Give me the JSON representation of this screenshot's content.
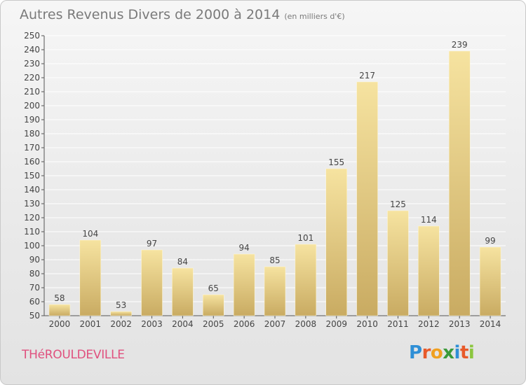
{
  "header": {
    "title": "Autres Revenus Divers de 2000 à 2014",
    "subtitle": "(en milliers d'€)"
  },
  "footer": {
    "city": "THéROULDEVILLE",
    "logo_letters": [
      {
        "char": "P",
        "color": "#2f8fd6"
      },
      {
        "char": "r",
        "color": "#e85a2a"
      },
      {
        "char": "o",
        "color": "#f0a020"
      },
      {
        "char": "x",
        "color": "#3a9a3a"
      },
      {
        "char": "i",
        "color": "#2f8fd6"
      },
      {
        "char": "t",
        "color": "#e85a2a"
      },
      {
        "char": "i",
        "color": "#8cc63f"
      }
    ]
  },
  "colors": {
    "bar_light": "#f6e3a0",
    "bar_dark": "#c9ab62",
    "grid": "#ffffff",
    "text": "#444444",
    "title": "#7a7a7a"
  },
  "chart_data": {
    "type": "bar",
    "title": "Autres Revenus Divers de 2000 à 2014",
    "unit": "(en milliers d'€)",
    "categories": [
      "2000",
      "2001",
      "2002",
      "2003",
      "2004",
      "2005",
      "2006",
      "2007",
      "2008",
      "2009",
      "2010",
      "2011",
      "2012",
      "2013",
      "2014"
    ],
    "values": [
      58,
      104,
      53,
      97,
      84,
      65,
      94,
      85,
      101,
      155,
      217,
      125,
      114,
      239,
      99
    ],
    "ylim": [
      50,
      250
    ],
    "yticks": [
      50,
      60,
      70,
      80,
      90,
      100,
      110,
      120,
      130,
      140,
      150,
      160,
      170,
      180,
      190,
      200,
      210,
      220,
      230,
      240,
      250
    ],
    "grid": true,
    "data_labels": true
  }
}
